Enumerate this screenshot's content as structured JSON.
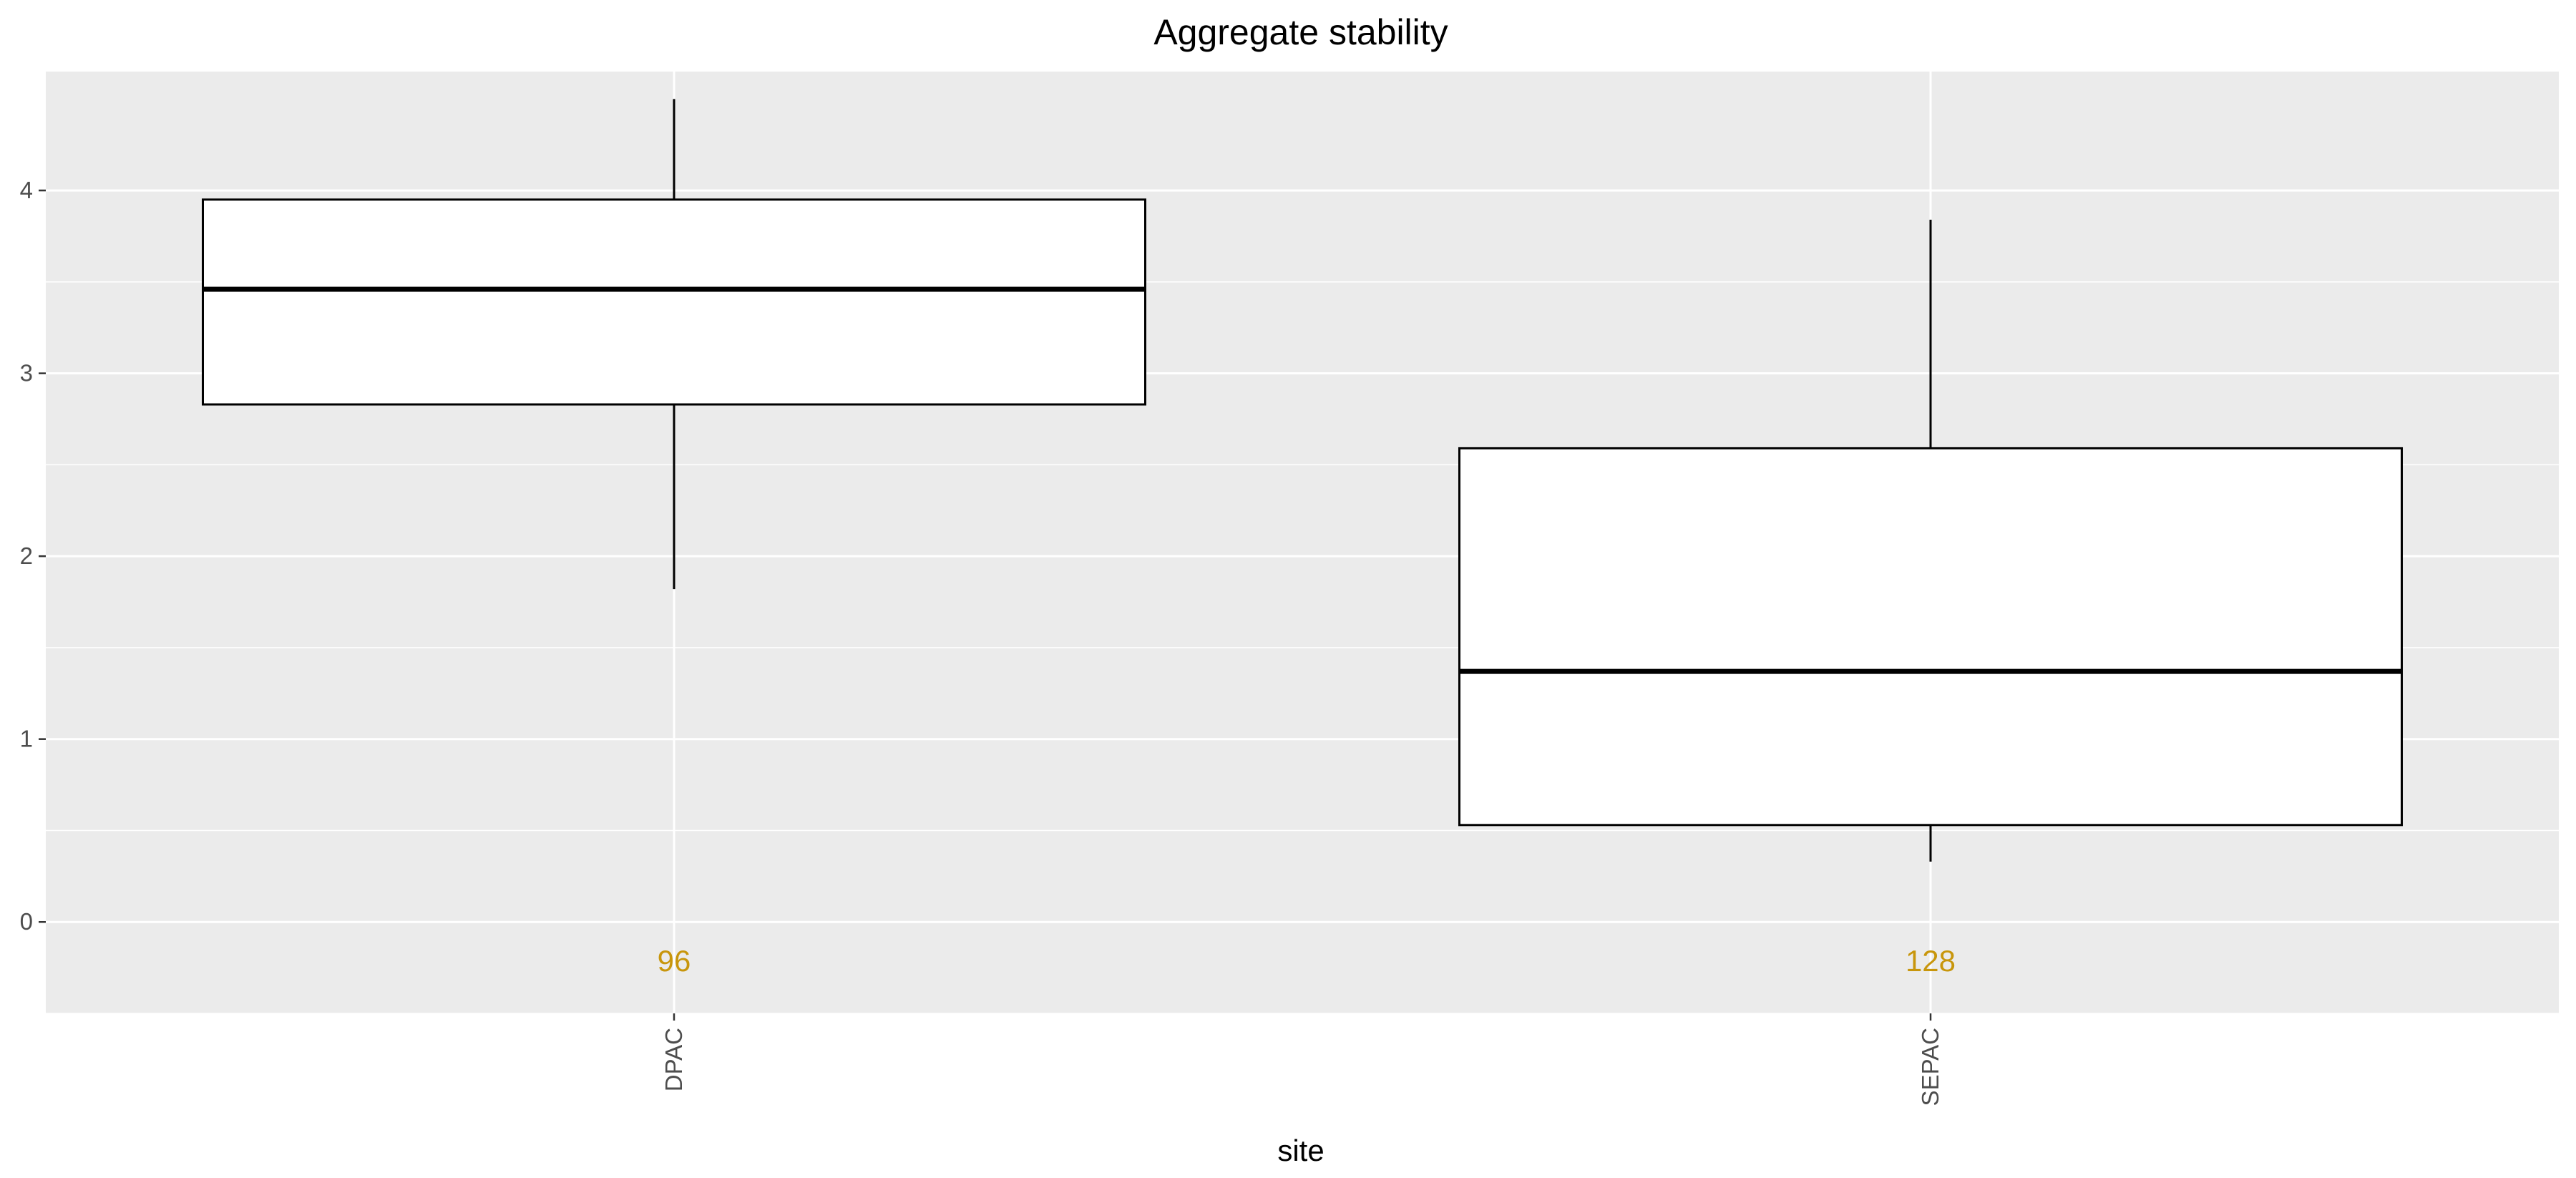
{
  "chart_data": {
    "type": "boxplot",
    "title": "Aggregate stability",
    "xlabel": "site",
    "ylabel": "",
    "ylim": [
      -0.5,
      4.65
    ],
    "yticks": [
      0,
      1,
      2,
      3,
      4
    ],
    "categories": [
      "DPAC",
      "SEPAC"
    ],
    "boxes": [
      {
        "category": "DPAC",
        "whisker_low": 1.82,
        "q1": 2.83,
        "median": 3.46,
        "q3": 3.95,
        "whisker_high": 4.5,
        "n": "96"
      },
      {
        "category": "SEPAC",
        "whisker_low": 0.33,
        "q1": 0.53,
        "median": 1.37,
        "q3": 2.59,
        "whisker_high": 3.84,
        "n": "128"
      }
    ],
    "count_label_y": -0.21,
    "count_color": "#c8960c",
    "panel_color": "#ebebeb",
    "grid": true
  }
}
